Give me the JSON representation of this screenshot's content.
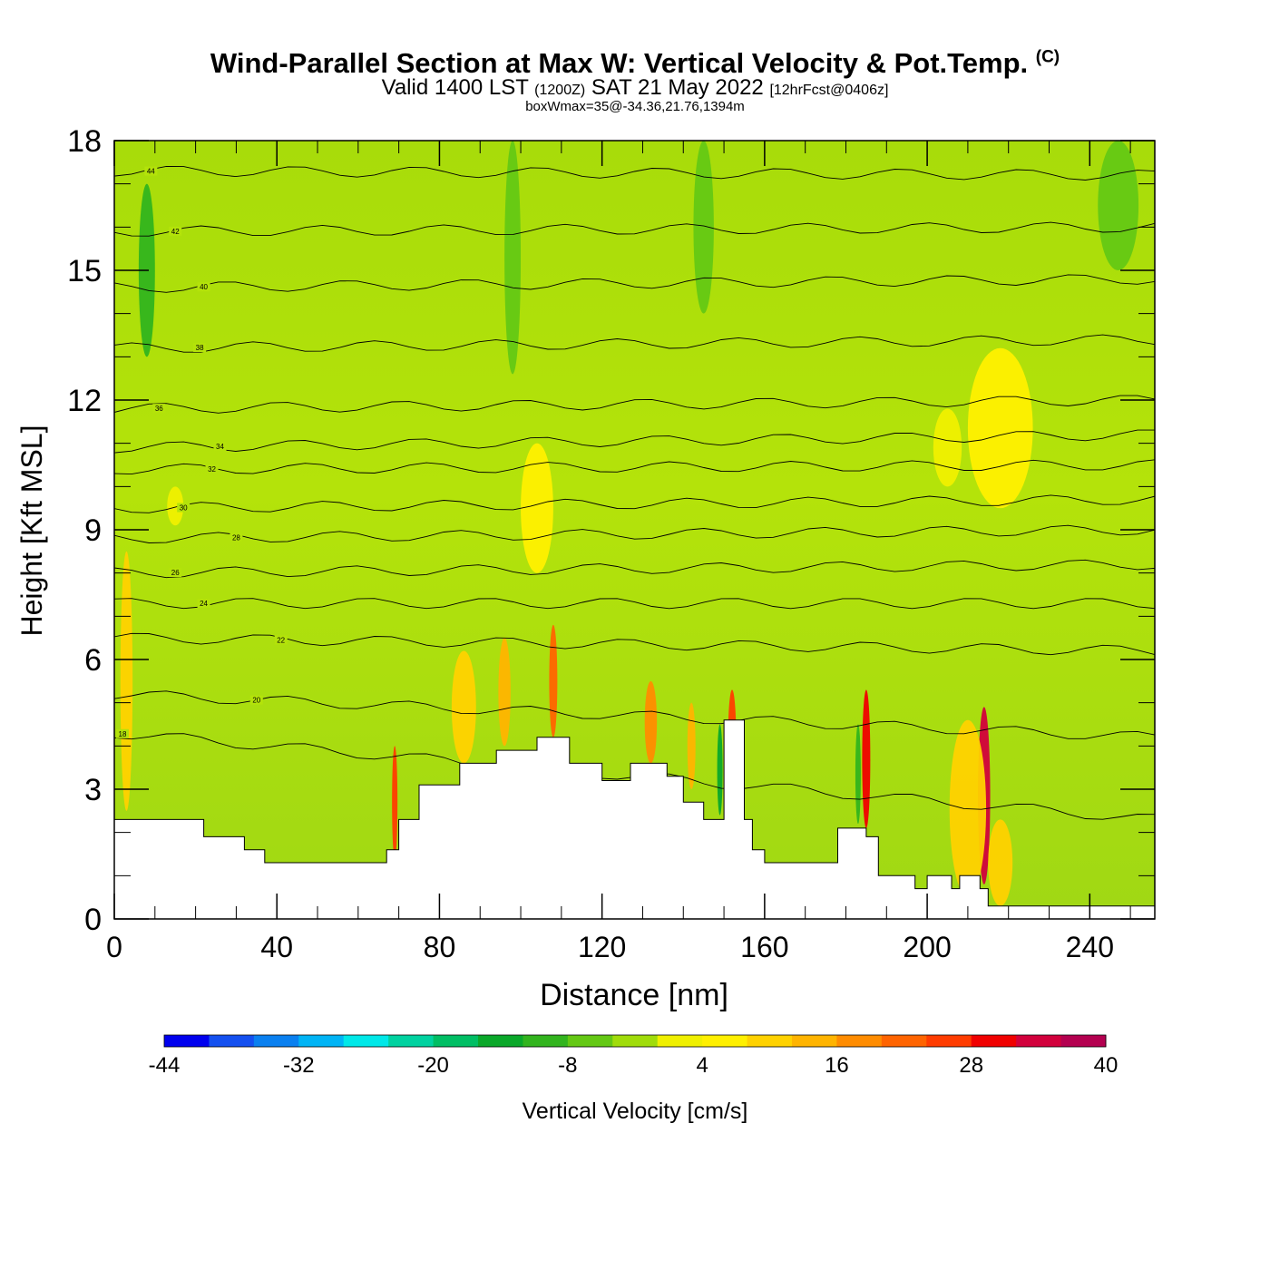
{
  "header": {
    "title_main": "Wind-Parallel Section at Max W: Vertical Velocity & Pot.Temp.",
    "title_mark": "(C)",
    "valid_prefix": "Valid 1400 LST",
    "valid_utc": "(1200Z)",
    "valid_date": "SAT 21 May 2022",
    "forecast_info": "[12hrFcst@0406z]",
    "box_info": "boxWmax=35@-34.36,21.76,1394m"
  },
  "chart_data": {
    "type": "heatmap",
    "title": "Wind-Parallel Section at Max W: Vertical Velocity & Pot.Temp.",
    "xlabel": "Distance [nm]",
    "ylabel": "Height [Kft MSL]",
    "xlim": [
      0,
      256
    ],
    "ylim": [
      0,
      18
    ],
    "x_ticks": [
      0,
      40,
      80,
      120,
      160,
      200,
      240
    ],
    "x_tick_labels": [
      "0",
      "40",
      "80",
      "120",
      "160",
      "200",
      "240"
    ],
    "y_ticks": [
      0,
      3,
      6,
      9,
      12,
      15,
      18
    ],
    "y_tick_labels": [
      "0",
      "3",
      "6",
      "9",
      "12",
      "15",
      "18"
    ],
    "terrain": [
      [
        0,
        2.3
      ],
      [
        22,
        2.3
      ],
      [
        22,
        1.9
      ],
      [
        32,
        1.9
      ],
      [
        32,
        1.6
      ],
      [
        37,
        1.6
      ],
      [
        37,
        1.3
      ],
      [
        67,
        1.3
      ],
      [
        67,
        1.6
      ],
      [
        70,
        1.6
      ],
      [
        70,
        2.3
      ],
      [
        75,
        2.3
      ],
      [
        75,
        3.1
      ],
      [
        85,
        3.1
      ],
      [
        85,
        3.6
      ],
      [
        94,
        3.6
      ],
      [
        94,
        3.9
      ],
      [
        104,
        3.9
      ],
      [
        104,
        4.2
      ],
      [
        112,
        4.2
      ],
      [
        112,
        3.6
      ],
      [
        120,
        3.6
      ],
      [
        120,
        3.2
      ],
      [
        127,
        3.2
      ],
      [
        127,
        3.6
      ],
      [
        136,
        3.6
      ],
      [
        136,
        3.3
      ],
      [
        140,
        3.3
      ],
      [
        140,
        2.7
      ],
      [
        145,
        2.7
      ],
      [
        145,
        2.3
      ],
      [
        150,
        2.3
      ],
      [
        150,
        4.6
      ],
      [
        155,
        4.6
      ],
      [
        155,
        2.3
      ],
      [
        157,
        2.3
      ],
      [
        157,
        1.6
      ],
      [
        160,
        1.6
      ],
      [
        160,
        1.3
      ],
      [
        178,
        1.3
      ],
      [
        178,
        2.1
      ],
      [
        185,
        2.1
      ],
      [
        185,
        1.9
      ],
      [
        188,
        1.9
      ],
      [
        188,
        1.0
      ],
      [
        197,
        1.0
      ],
      [
        197,
        0.7
      ],
      [
        200,
        0.7
      ],
      [
        200,
        1.0
      ],
      [
        206,
        1.0
      ],
      [
        206,
        0.7
      ],
      [
        208,
        0.7
      ],
      [
        208,
        1.0
      ],
      [
        213,
        1.0
      ],
      [
        213,
        0.7
      ],
      [
        215,
        0.7
      ],
      [
        215,
        0.3
      ],
      [
        256,
        0.3
      ]
    ],
    "w_features": [
      {
        "x": 3,
        "h0": 2.5,
        "h1": 8.5,
        "w": 3,
        "value": 10
      },
      {
        "x": 69,
        "h0": 1.4,
        "h1": 4.0,
        "w": 1,
        "value": 24
      },
      {
        "x": 86,
        "h0": 3.6,
        "h1": 6.2,
        "w": 6,
        "value": 8
      },
      {
        "x": 96,
        "h0": 4.0,
        "h1": 6.5,
        "w": 3,
        "value": 14
      },
      {
        "x": 108,
        "h0": 4.2,
        "h1": 6.8,
        "w": 2,
        "value": 22
      },
      {
        "x": 104,
        "h0": 8.0,
        "h1": 11.0,
        "w": 8,
        "value": 4
      },
      {
        "x": 132,
        "h0": 3.6,
        "h1": 5.5,
        "w": 3,
        "value": 16
      },
      {
        "x": 142,
        "h0": 3.0,
        "h1": 5.0,
        "w": 2,
        "value": 12
      },
      {
        "x": 152,
        "h0": 3.0,
        "h1": 5.3,
        "w": 2,
        "value": 26
      },
      {
        "x": 185,
        "h0": 2.1,
        "h1": 5.3,
        "w": 2,
        "value": 28
      },
      {
        "x": 214,
        "h0": 0.8,
        "h1": 4.9,
        "w": 3,
        "value": 34
      },
      {
        "x": 210,
        "h0": 0.5,
        "h1": 4.6,
        "w": 9,
        "value": 10
      },
      {
        "x": 218,
        "h0": 0.3,
        "h1": 2.3,
        "w": 6,
        "value": 8
      },
      {
        "x": 149,
        "h0": 2.4,
        "h1": 4.5,
        "w": 1,
        "value": -14
      },
      {
        "x": 183,
        "h0": 2.2,
        "h1": 4.5,
        "w": 1,
        "value": -12
      },
      {
        "x": 8,
        "h0": 13.0,
        "h1": 17.0,
        "w": 4,
        "value": -9
      },
      {
        "x": 98,
        "h0": 12.6,
        "h1": 18.0,
        "w": 4,
        "value": -6
      },
      {
        "x": 145,
        "h0": 14.0,
        "h1": 18.0,
        "w": 5,
        "value": -6
      },
      {
        "x": 218,
        "h0": 9.5,
        "h1": 13.2,
        "w": 16,
        "value": 4
      },
      {
        "x": 205,
        "h0": 10.0,
        "h1": 11.8,
        "w": 7,
        "value": 3
      },
      {
        "x": 15,
        "h0": 9.1,
        "h1": 10.0,
        "w": 4,
        "value": 3
      },
      {
        "x": 247,
        "h0": 15.0,
        "h1": 18.0,
        "w": 10,
        "value": -6
      }
    ],
    "theta_contours": [
      {
        "label": "18",
        "x_labeled": 2,
        "y_left": 4.3,
        "y_right": 2.3
      },
      {
        "label": "20",
        "x_labeled": 35,
        "y_left": 5.2,
        "y_right": 4.2
      },
      {
        "label": "22",
        "x_labeled": 41,
        "y_left": 6.5,
        "y_right": 6.2
      },
      {
        "label": "24",
        "x_labeled": 22,
        "y_left": 7.3,
        "y_right": 7.3
      },
      {
        "label": "26",
        "x_labeled": 15,
        "y_left": 8.0,
        "y_right": 8.2
      },
      {
        "label": "28",
        "x_labeled": 30,
        "y_left": 8.8,
        "y_right": 9.0
      },
      {
        "label": "30",
        "x_labeled": 17,
        "y_left": 9.5,
        "y_right": 9.7
      },
      {
        "label": "32",
        "x_labeled": 24,
        "y_left": 10.4,
        "y_right": 10.5
      },
      {
        "label": "34",
        "x_labeled": 26,
        "y_left": 10.9,
        "y_right": 11.2
      },
      {
        "label": "36",
        "x_labeled": 11,
        "y_left": 11.8,
        "y_right": 12.0
      },
      {
        "label": "38",
        "x_labeled": 21,
        "y_left": 13.2,
        "y_right": 13.4
      },
      {
        "label": "40",
        "x_labeled": 22,
        "y_left": 14.6,
        "y_right": 14.8
      },
      {
        "label": "42",
        "x_labeled": 15,
        "y_left": 15.9,
        "y_right": 16.0
      },
      {
        "label": "44",
        "x_labeled": 9,
        "y_left": 17.3,
        "y_right": 17.2
      }
    ],
    "colorbar": {
      "label": "Vertical Velocity [cm/s]",
      "min": -44,
      "max": 40,
      "step": 4,
      "tick_labels": [
        "-44",
        "-32",
        "-20",
        "-8",
        "4",
        "16",
        "28",
        "40"
      ],
      "colors": [
        "#0000ee",
        "#1450f0",
        "#0a80f0",
        "#00b4f5",
        "#00e8e8",
        "#00d2a0",
        "#00be64",
        "#0aa82a",
        "#32b41e",
        "#64c814",
        "#a0dc0a",
        "#f0f000",
        "#fff000",
        "#ffd200",
        "#ffb400",
        "#ff8c00",
        "#ff6400",
        "#ff3c00",
        "#f00000",
        "#d2003c",
        "#b40050"
      ]
    }
  }
}
